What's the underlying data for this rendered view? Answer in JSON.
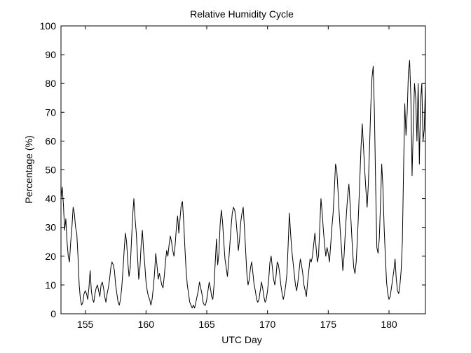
{
  "chart_data": {
    "type": "line",
    "title": "Relative Humidity Cycle",
    "xlabel": "UTC Day",
    "ylabel": "Percentage (%)",
    "xlim": [
      153,
      183
    ],
    "ylim": [
      0,
      100
    ],
    "x_ticks": [
      155,
      160,
      165,
      170,
      175,
      180
    ],
    "y_ticks": [
      0,
      10,
      20,
      30,
      40,
      50,
      60,
      70,
      80,
      90,
      100
    ],
    "grid": false,
    "legend": "none",
    "colors": {
      "line": "#000000",
      "axes": "#000000",
      "background": "#ffffff"
    },
    "series": [
      {
        "points": [
          [
            153.0,
            40
          ],
          [
            153.1,
            44
          ],
          [
            153.2,
            38
          ],
          [
            153.3,
            29
          ],
          [
            153.4,
            33
          ],
          [
            153.5,
            25
          ],
          [
            153.6,
            20
          ],
          [
            153.7,
            18
          ],
          [
            153.8,
            25
          ],
          [
            153.9,
            30
          ],
          [
            154.0,
            37
          ],
          [
            154.1,
            35
          ],
          [
            154.2,
            30
          ],
          [
            154.3,
            28
          ],
          [
            154.4,
            20
          ],
          [
            154.5,
            10
          ],
          [
            154.6,
            5
          ],
          [
            154.7,
            3
          ],
          [
            154.8,
            4
          ],
          [
            154.9,
            7
          ],
          [
            155.0,
            8
          ],
          [
            155.1,
            7
          ],
          [
            155.2,
            5
          ],
          [
            155.3,
            9
          ],
          [
            155.4,
            15
          ],
          [
            155.5,
            8
          ],
          [
            155.6,
            5
          ],
          [
            155.7,
            4
          ],
          [
            155.8,
            7
          ],
          [
            155.9,
            9
          ],
          [
            156.0,
            10
          ],
          [
            156.1,
            8
          ],
          [
            156.2,
            6
          ],
          [
            156.3,
            10
          ],
          [
            156.4,
            11
          ],
          [
            156.5,
            9
          ],
          [
            156.6,
            6
          ],
          [
            156.7,
            4
          ],
          [
            156.8,
            7
          ],
          [
            156.9,
            9
          ],
          [
            157.0,
            12
          ],
          [
            157.1,
            16
          ],
          [
            157.2,
            18
          ],
          [
            157.3,
            17
          ],
          [
            157.4,
            15
          ],
          [
            157.5,
            10
          ],
          [
            157.6,
            7
          ],
          [
            157.7,
            4
          ],
          [
            157.8,
            3
          ],
          [
            157.9,
            5
          ],
          [
            158.0,
            9
          ],
          [
            158.1,
            15
          ],
          [
            158.2,
            22
          ],
          [
            158.3,
            28
          ],
          [
            158.4,
            25
          ],
          [
            158.5,
            18
          ],
          [
            158.6,
            13
          ],
          [
            158.7,
            16
          ],
          [
            158.8,
            25
          ],
          [
            158.9,
            34
          ],
          [
            159.0,
            40
          ],
          [
            159.1,
            33
          ],
          [
            159.2,
            28
          ],
          [
            159.3,
            20
          ],
          [
            159.4,
            12
          ],
          [
            159.5,
            16
          ],
          [
            159.6,
            24
          ],
          [
            159.7,
            29
          ],
          [
            159.8,
            22
          ],
          [
            159.9,
            17
          ],
          [
            160.0,
            11
          ],
          [
            160.1,
            8
          ],
          [
            160.2,
            6
          ],
          [
            160.3,
            5
          ],
          [
            160.4,
            3
          ],
          [
            160.5,
            5
          ],
          [
            160.6,
            9
          ],
          [
            160.7,
            14
          ],
          [
            160.8,
            21
          ],
          [
            160.9,
            17
          ],
          [
            161.0,
            12
          ],
          [
            161.1,
            14
          ],
          [
            161.2,
            12
          ],
          [
            161.3,
            10
          ],
          [
            161.4,
            9
          ],
          [
            161.5,
            13
          ],
          [
            161.6,
            18
          ],
          [
            161.7,
            22
          ],
          [
            161.8,
            20
          ],
          [
            161.9,
            24
          ],
          [
            162.0,
            27
          ],
          [
            162.1,
            25
          ],
          [
            162.2,
            22
          ],
          [
            162.3,
            20
          ],
          [
            162.4,
            24
          ],
          [
            162.5,
            30
          ],
          [
            162.6,
            34
          ],
          [
            162.7,
            28
          ],
          [
            162.8,
            33
          ],
          [
            162.9,
            38
          ],
          [
            163.0,
            39
          ],
          [
            163.1,
            32
          ],
          [
            163.2,
            23
          ],
          [
            163.3,
            15
          ],
          [
            163.4,
            10
          ],
          [
            163.5,
            7
          ],
          [
            163.6,
            4
          ],
          [
            163.7,
            3
          ],
          [
            163.8,
            2
          ],
          [
            163.9,
            3
          ],
          [
            164.0,
            2
          ],
          [
            164.1,
            4
          ],
          [
            164.2,
            6
          ],
          [
            164.3,
            8
          ],
          [
            164.4,
            11
          ],
          [
            164.5,
            9
          ],
          [
            164.6,
            7
          ],
          [
            164.7,
            4
          ],
          [
            164.8,
            3
          ],
          [
            164.9,
            3
          ],
          [
            165.0,
            5
          ],
          [
            165.1,
            8
          ],
          [
            165.2,
            11
          ],
          [
            165.3,
            9
          ],
          [
            165.4,
            6
          ],
          [
            165.5,
            5
          ],
          [
            165.6,
            10
          ],
          [
            165.7,
            18
          ],
          [
            165.8,
            26
          ],
          [
            165.9,
            17
          ],
          [
            166.0,
            21
          ],
          [
            166.1,
            31
          ],
          [
            166.2,
            36
          ],
          [
            166.3,
            32
          ],
          [
            166.4,
            25
          ],
          [
            166.5,
            19
          ],
          [
            166.6,
            16
          ],
          [
            166.7,
            13
          ],
          [
            166.8,
            18
          ],
          [
            166.9,
            24
          ],
          [
            167.0,
            30
          ],
          [
            167.1,
            35
          ],
          [
            167.2,
            37
          ],
          [
            167.3,
            36
          ],
          [
            167.4,
            33
          ],
          [
            167.5,
            28
          ],
          [
            167.6,
            22
          ],
          [
            167.7,
            26
          ],
          [
            167.8,
            32
          ],
          [
            167.9,
            35
          ],
          [
            168.0,
            37
          ],
          [
            168.1,
            30
          ],
          [
            168.2,
            22
          ],
          [
            168.3,
            14
          ],
          [
            168.4,
            10
          ],
          [
            168.5,
            12
          ],
          [
            168.6,
            16
          ],
          [
            168.7,
            18
          ],
          [
            168.8,
            14
          ],
          [
            168.9,
            10
          ],
          [
            169.0,
            8
          ],
          [
            169.1,
            5
          ],
          [
            169.2,
            4
          ],
          [
            169.3,
            5
          ],
          [
            169.4,
            8
          ],
          [
            169.5,
            11
          ],
          [
            169.6,
            9
          ],
          [
            169.7,
            6
          ],
          [
            169.8,
            4
          ],
          [
            169.9,
            5
          ],
          [
            170.0,
            8
          ],
          [
            170.1,
            12
          ],
          [
            170.2,
            18
          ],
          [
            170.3,
            20
          ],
          [
            170.4,
            16
          ],
          [
            170.5,
            12
          ],
          [
            170.6,
            10
          ],
          [
            170.7,
            13
          ],
          [
            170.8,
            18
          ],
          [
            170.9,
            17
          ],
          [
            171.0,
            14
          ],
          [
            171.1,
            10
          ],
          [
            171.2,
            7
          ],
          [
            171.3,
            5
          ],
          [
            171.4,
            7
          ],
          [
            171.5,
            10
          ],
          [
            171.6,
            14
          ],
          [
            171.7,
            24
          ],
          [
            171.8,
            35
          ],
          [
            171.9,
            28
          ],
          [
            172.0,
            22
          ],
          [
            172.1,
            18
          ],
          [
            172.2,
            14
          ],
          [
            172.3,
            10
          ],
          [
            172.4,
            8
          ],
          [
            172.5,
            11
          ],
          [
            172.6,
            15
          ],
          [
            172.7,
            19
          ],
          [
            172.8,
            17
          ],
          [
            172.9,
            14
          ],
          [
            173.0,
            10
          ],
          [
            173.1,
            8
          ],
          [
            173.2,
            6
          ],
          [
            173.3,
            11
          ],
          [
            173.4,
            15
          ],
          [
            173.5,
            19
          ],
          [
            173.6,
            18
          ],
          [
            173.7,
            20
          ],
          [
            173.8,
            24
          ],
          [
            173.9,
            28
          ],
          [
            174.0,
            23
          ],
          [
            174.1,
            18
          ],
          [
            174.2,
            20
          ],
          [
            174.3,
            30
          ],
          [
            174.4,
            40
          ],
          [
            174.5,
            35
          ],
          [
            174.6,
            29
          ],
          [
            174.7,
            24
          ],
          [
            174.8,
            20
          ],
          [
            174.9,
            23
          ],
          [
            175.0,
            21
          ],
          [
            175.1,
            18
          ],
          [
            175.2,
            24
          ],
          [
            175.3,
            30
          ],
          [
            175.4,
            35
          ],
          [
            175.5,
            43
          ],
          [
            175.6,
            52
          ],
          [
            175.7,
            50
          ],
          [
            175.8,
            43
          ],
          [
            175.9,
            35
          ],
          [
            176.0,
            28
          ],
          [
            176.1,
            22
          ],
          [
            176.2,
            15
          ],
          [
            176.3,
            20
          ],
          [
            176.4,
            28
          ],
          [
            176.5,
            35
          ],
          [
            176.6,
            41
          ],
          [
            176.7,
            45
          ],
          [
            176.8,
            38
          ],
          [
            176.9,
            30
          ],
          [
            177.0,
            22
          ],
          [
            177.1,
            16
          ],
          [
            177.2,
            14
          ],
          [
            177.3,
            18
          ],
          [
            177.4,
            26
          ],
          [
            177.5,
            36
          ],
          [
            177.6,
            47
          ],
          [
            177.7,
            58
          ],
          [
            177.8,
            66
          ],
          [
            177.9,
            58
          ],
          [
            178.0,
            50
          ],
          [
            178.1,
            43
          ],
          [
            178.2,
            37
          ],
          [
            178.3,
            45
          ],
          [
            178.4,
            58
          ],
          [
            178.5,
            72
          ],
          [
            178.6,
            82
          ],
          [
            178.7,
            86
          ],
          [
            178.8,
            70
          ],
          [
            178.9,
            45
          ],
          [
            179.0,
            23
          ],
          [
            179.1,
            21
          ],
          [
            179.2,
            26
          ],
          [
            179.3,
            38
          ],
          [
            179.4,
            52
          ],
          [
            179.5,
            44
          ],
          [
            179.6,
            30
          ],
          [
            179.7,
            20
          ],
          [
            179.8,
            11
          ],
          [
            179.9,
            7
          ],
          [
            180.0,
            5
          ],
          [
            180.1,
            6
          ],
          [
            180.2,
            9
          ],
          [
            180.3,
            12
          ],
          [
            180.4,
            15
          ],
          [
            180.5,
            19
          ],
          [
            180.6,
            12
          ],
          [
            180.7,
            8
          ],
          [
            180.8,
            7
          ],
          [
            180.9,
            10
          ],
          [
            181.0,
            15
          ],
          [
            181.1,
            25
          ],
          [
            181.2,
            50
          ],
          [
            181.3,
            73
          ],
          [
            181.4,
            62
          ],
          [
            181.5,
            70
          ],
          [
            181.6,
            84
          ],
          [
            181.7,
            88
          ],
          [
            181.8,
            75
          ],
          [
            181.9,
            48
          ],
          [
            182.0,
            65
          ],
          [
            182.1,
            80
          ],
          [
            182.2,
            75
          ],
          [
            182.3,
            60
          ],
          [
            182.4,
            80
          ],
          [
            182.5,
            52
          ],
          [
            182.6,
            74
          ],
          [
            182.7,
            80
          ],
          [
            182.8,
            60
          ],
          [
            182.9,
            64
          ],
          [
            183.0,
            80
          ]
        ]
      }
    ]
  }
}
